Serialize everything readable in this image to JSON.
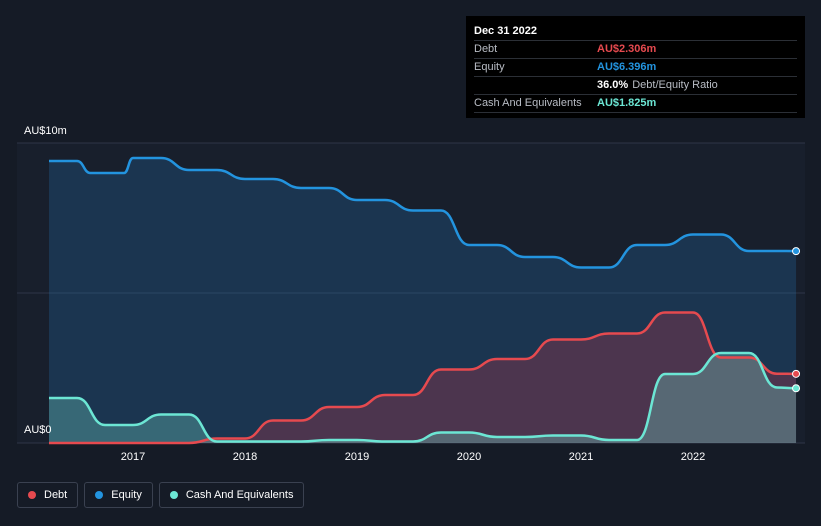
{
  "tooltip": {
    "date": "Dec 31 2022",
    "rows": [
      {
        "label": "Debt",
        "value": "AU$2.306m",
        "color": "#e64a4f"
      },
      {
        "label": "Equity",
        "value": "AU$6.396m",
        "color": "#2394df"
      },
      {
        "label": "",
        "value": "36.0%",
        "extra": "Debt/Equity Ratio",
        "color": "#ffffff"
      },
      {
        "label": "Cash And Equivalents",
        "value": "AU$1.825m",
        "color": "#6ce6d4"
      }
    ]
  },
  "chart_data": {
    "type": "area",
    "ylim": [
      0,
      10
    ],
    "ytick_labels": [
      "AU$10m",
      "AU$0"
    ],
    "x_ticks": [
      {
        "label": "2017",
        "value": 2017.0
      },
      {
        "label": "2018",
        "value": 2018.0
      },
      {
        "label": "2019",
        "value": 2019.0
      },
      {
        "label": "2020",
        "value": 2020.0
      },
      {
        "label": "2021",
        "value": 2021.0
      },
      {
        "label": "2022",
        "value": 2022.0
      }
    ],
    "xlim": [
      2015.7,
      2023.0
    ],
    "series": [
      {
        "name": "Equity",
        "color": "#2394df",
        "x": [
          2016.25,
          2016.5,
          2016.62,
          2016.92,
          2017.0,
          2017.25,
          2017.5,
          2017.75,
          2018.0,
          2018.25,
          2018.5,
          2018.75,
          2019.0,
          2019.25,
          2019.5,
          2019.75,
          2020.0,
          2020.25,
          2020.5,
          2020.75,
          2021.0,
          2021.25,
          2021.5,
          2021.75,
          2022.0,
          2022.25,
          2022.5,
          2022.75,
          2023.0
        ],
        "values": [
          9.4,
          9.4,
          9.0,
          9.0,
          9.5,
          9.5,
          9.1,
          9.1,
          8.8,
          8.8,
          8.5,
          8.5,
          8.1,
          8.1,
          7.75,
          7.75,
          6.6,
          6.6,
          6.2,
          6.2,
          5.85,
          5.85,
          6.6,
          6.6,
          6.95,
          6.95,
          6.4,
          6.4,
          6.396
        ]
      },
      {
        "name": "Debt",
        "color": "#e64a4f",
        "x": [
          2016.25,
          2016.5,
          2016.75,
          2017.0,
          2017.25,
          2017.5,
          2017.75,
          2018.0,
          2018.25,
          2018.5,
          2018.75,
          2019.0,
          2019.25,
          2019.5,
          2019.75,
          2020.0,
          2020.25,
          2020.5,
          2020.75,
          2021.0,
          2021.25,
          2021.5,
          2021.75,
          2022.0,
          2022.25,
          2022.5,
          2022.75,
          2023.0
        ],
        "values": [
          0.0,
          0.0,
          0.0,
          0.0,
          0.0,
          0.0,
          0.15,
          0.15,
          0.75,
          0.75,
          1.2,
          1.2,
          1.6,
          1.6,
          2.45,
          2.45,
          2.8,
          2.8,
          3.45,
          3.45,
          3.65,
          3.65,
          4.35,
          4.35,
          2.85,
          2.85,
          2.31,
          2.306
        ]
      },
      {
        "name": "Cash And Equivalents",
        "color": "#6ce6d4",
        "x": [
          2016.25,
          2016.5,
          2016.75,
          2017.0,
          2017.25,
          2017.5,
          2017.75,
          2018.0,
          2018.25,
          2018.5,
          2018.75,
          2019.0,
          2019.25,
          2019.5,
          2019.75,
          2020.0,
          2020.25,
          2020.5,
          2020.75,
          2021.0,
          2021.25,
          2021.5,
          2021.75,
          2022.0,
          2022.25,
          2022.5,
          2022.75,
          2023.0
        ],
        "values": [
          1.5,
          1.5,
          0.6,
          0.6,
          0.95,
          0.95,
          0.05,
          0.05,
          0.05,
          0.05,
          0.1,
          0.1,
          0.05,
          0.05,
          0.35,
          0.35,
          0.2,
          0.2,
          0.25,
          0.25,
          0.1,
          0.1,
          2.3,
          2.3,
          3.0,
          3.0,
          1.85,
          1.825
        ]
      }
    ]
  },
  "legend": [
    {
      "label": "Debt",
      "color": "#e64a4f"
    },
    {
      "label": "Equity",
      "color": "#2394df"
    },
    {
      "label": "Cash And Equivalents",
      "color": "#6ce6d4"
    }
  ]
}
